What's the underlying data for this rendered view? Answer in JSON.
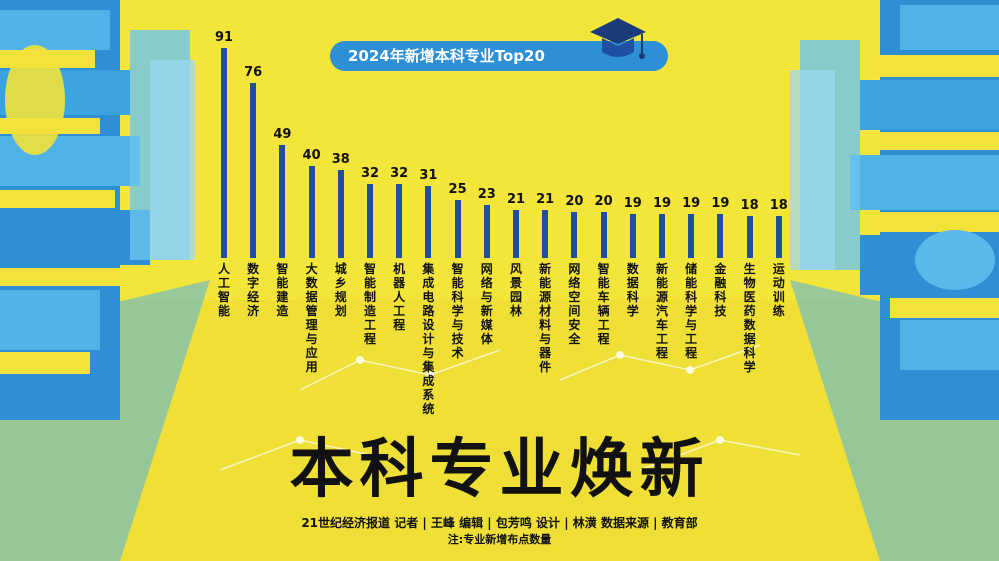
{
  "header": {
    "title": "2024年新增本科专业Top20"
  },
  "headline": "本科专业焕新",
  "credits": "21世纪经济报道  记者 | 王峰    编辑 | 包芳鸣    设计 | 林潢    数据来源 | 教育部",
  "note": "注:专业新增布点数量",
  "icons": [
    "graduation-cap-icon"
  ],
  "colors": {
    "background": "#f4e53a",
    "bar": "#1f4fa0",
    "pill": "#2d8fd6",
    "books": "#3ba4e0"
  },
  "chart_data": {
    "type": "bar",
    "title": "2024年新增本科专业Top20",
    "categories": [
      "人工智能",
      "数字经济",
      "智能建造",
      "大数据管理与应用",
      "城乡规划",
      "智能制造工程",
      "机器人工程",
      "集成电路设计与集成系统",
      "智能科学与技术",
      "网络与新媒体",
      "风景园林",
      "新能源材料与器件",
      "网络空间安全",
      "智能车辆工程",
      "数据科学",
      "新能源汽车工程",
      "储能科学与工程",
      "金融科技",
      "生物医药数据科学",
      "运动训练"
    ],
    "values": [
      91,
      76,
      49,
      40,
      38,
      32,
      32,
      31,
      25,
      23,
      21,
      21,
      20,
      20,
      19,
      19,
      19,
      19,
      18,
      18
    ],
    "ylim": [
      0,
      91
    ],
    "grid": false,
    "legend": "none"
  }
}
